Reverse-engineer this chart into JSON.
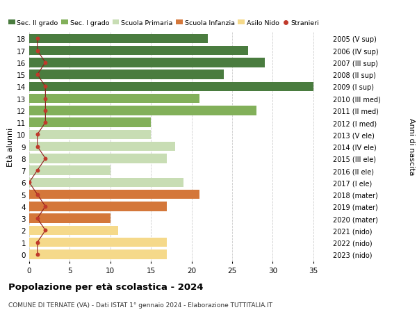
{
  "ages": [
    18,
    17,
    16,
    15,
    14,
    13,
    12,
    11,
    10,
    9,
    8,
    7,
    6,
    5,
    4,
    3,
    2,
    1,
    0
  ],
  "years": [
    "2005 (V sup)",
    "2006 (IV sup)",
    "2007 (III sup)",
    "2008 (II sup)",
    "2009 (I sup)",
    "2010 (III med)",
    "2011 (II med)",
    "2012 (I med)",
    "2013 (V ele)",
    "2014 (IV ele)",
    "2015 (III ele)",
    "2016 (II ele)",
    "2017 (I ele)",
    "2018 (mater)",
    "2019 (mater)",
    "2020 (mater)",
    "2021 (nido)",
    "2022 (nido)",
    "2023 (nido)"
  ],
  "bar_values": [
    22,
    27,
    29,
    24,
    35,
    21,
    28,
    15,
    15,
    18,
    17,
    10,
    19,
    21,
    17,
    10,
    11,
    17,
    17
  ],
  "bar_colors": [
    "#4a7c3f",
    "#4a7c3f",
    "#4a7c3f",
    "#4a7c3f",
    "#4a7c3f",
    "#82b05a",
    "#82b05a",
    "#82b05a",
    "#c8ddb4",
    "#c8ddb4",
    "#c8ddb4",
    "#c8ddb4",
    "#c8ddb4",
    "#d4773a",
    "#d4773a",
    "#d4773a",
    "#f5d98a",
    "#f5d98a",
    "#f5d98a"
  ],
  "stranieri_values": [
    1,
    1,
    2,
    1,
    2,
    2,
    2,
    2,
    1,
    1,
    2,
    1,
    0,
    1,
    2,
    1,
    2,
    1,
    1
  ],
  "legend_labels": [
    "Sec. II grado",
    "Sec. I grado",
    "Scuola Primaria",
    "Scuola Infanzia",
    "Asilo Nido",
    "Stranieri"
  ],
  "legend_colors": [
    "#4a7c3f",
    "#82b05a",
    "#c8ddb4",
    "#d4773a",
    "#f5d98a",
    "#c0392b"
  ],
  "title": "Popolazione per età scolastica - 2024",
  "subtitle": "COMUNE DI TERNATE (VA) - Dati ISTAT 1° gennaio 2024 - Elaborazione TUTTITALIA.IT",
  "ylabel_left": "Età alunni",
  "ylabel_right": "Anni di nascita",
  "xlim": [
    0,
    37
  ],
  "bg_color": "#ffffff",
  "grid_color": "#cccccc"
}
